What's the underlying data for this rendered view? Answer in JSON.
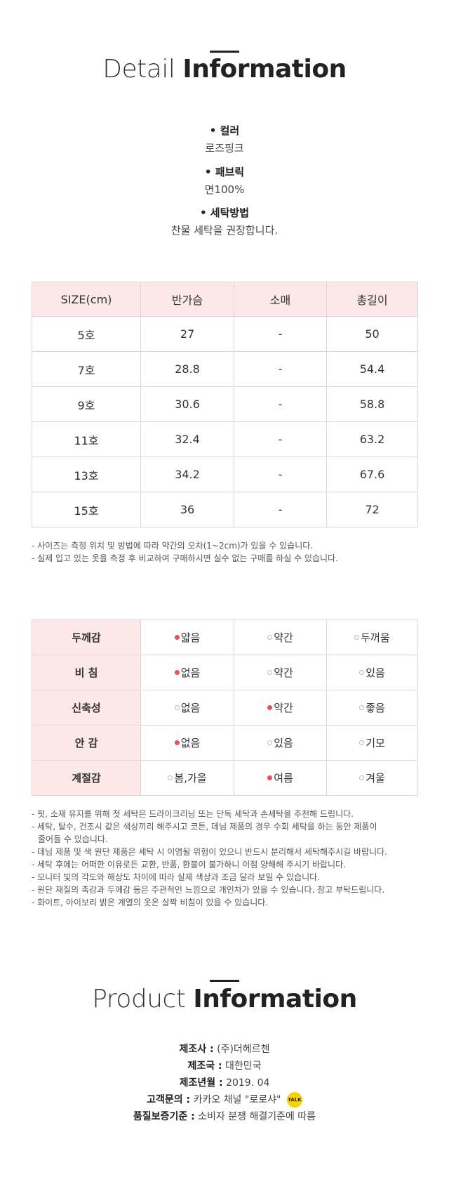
{
  "detail": {
    "title_light": "Detail",
    "title_bold": "Information",
    "specs": [
      {
        "label": "• 컬러",
        "value": "로즈핑크"
      },
      {
        "label": "• 패브릭",
        "value": "면100%"
      },
      {
        "label": "• 세탁방법",
        "value": "찬물 세탁을 권장합니다."
      }
    ]
  },
  "size_table": {
    "headers": [
      "SIZE(cm)",
      "반가슴",
      "소매",
      "총길이"
    ],
    "rows": [
      [
        "5호",
        "27",
        "-",
        "50"
      ],
      [
        "7호",
        "28.8",
        "-",
        "54.4"
      ],
      [
        "9호",
        "30.6",
        "-",
        "58.8"
      ],
      [
        "11호",
        "32.4",
        "-",
        "63.2"
      ],
      [
        "13호",
        "34.2",
        "-",
        "67.6"
      ],
      [
        "15호",
        "36",
        "-",
        "72"
      ]
    ]
  },
  "size_notes": [
    "- 사이즈는 측정 위치 및 방법에 따라 약간의 오차(1~2cm)가 있을 수 있습니다.",
    "- 실제 입고 있는 옷을 측정 후 비교하여 구매하시면 실수 없는 구매를 하실 수 있습니다."
  ],
  "feel_table": {
    "rows": [
      {
        "label": "두께감",
        "options": [
          {
            "text": "얇음",
            "on": true
          },
          {
            "text": "약간",
            "on": false
          },
          {
            "text": "두꺼움",
            "on": false
          }
        ]
      },
      {
        "label": "비 침",
        "options": [
          {
            "text": "없음",
            "on": true
          },
          {
            "text": "약간",
            "on": false
          },
          {
            "text": "있음",
            "on": false
          }
        ]
      },
      {
        "label": "신축성",
        "options": [
          {
            "text": "없음",
            "on": false
          },
          {
            "text": "약간",
            "on": true
          },
          {
            "text": "좋음",
            "on": false
          }
        ]
      },
      {
        "label": "안 감",
        "options": [
          {
            "text": "없음",
            "on": true
          },
          {
            "text": "있음",
            "on": false
          },
          {
            "text": "기모",
            "on": false
          }
        ]
      },
      {
        "label": "계절감",
        "options": [
          {
            "text": "봄,가을",
            "on": false
          },
          {
            "text": "여름",
            "on": true
          },
          {
            "text": "겨울",
            "on": false
          }
        ]
      }
    ]
  },
  "care_notes": [
    "- 핏, 소재 유지를 위해 첫 세탁은 드라이크리닝 또는 단독 세탁과 손세탁을 추천해 드립니다.",
    "- 세탁, 탈수, 건조시 같은 색상끼리 해주시고 코튼, 데님 제품의 경우 수회 세탁을 하는 동안 제품이",
    "줄어들 수 있습니다.",
    "- 데님 제품 및 색 원단 제품은 세탁 시 이염될 위험이 있으니 반드시 분리해서 세탁해주시길 바랍니다.",
    "- 세탁 후에는 어떠한 이유로든 교환, 반품, 환불이 불가하니 이점 양해해 주시기 바랍니다.",
    "- 모니터 빛의 각도와 해상도 차이에 따라 실제 색상과 조금 달라 보일 수 있습니다.",
    "- 원단 재질의 촉감과 두께감 등은 주관적인 느낌으로 개인차가 있을 수 있습니다. 참고 부탁드립니다.",
    "- 화이트, 아이보리 밝은 계열의 옷은 살짝 비침이 있을 수 있습니다."
  ],
  "product": {
    "title_light": "Product",
    "title_bold": "Information",
    "rows": [
      {
        "key": "제조사 :",
        "value": "(주)더헤르첸"
      },
      {
        "key": "제조국 :",
        "value": "대한민국"
      },
      {
        "key": "제조년월 :",
        "value": "2019. 04"
      },
      {
        "key": "고객문의 :",
        "value": "카카오 채널 \"로로샤\""
      },
      {
        "key": "품질보증기준 :",
        "value": "소비자 분쟁 해결기준에 따름"
      }
    ],
    "talk_icon_text": "TALK"
  }
}
